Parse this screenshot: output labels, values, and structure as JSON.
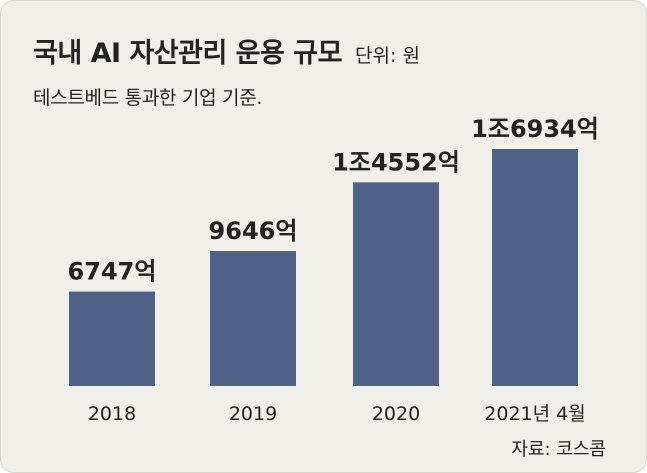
{
  "header": {
    "title": "국내 AI 자산관리 운용 규모",
    "unit": "단위: 원",
    "subtitle": "테스트베드 통과한 기업 기준."
  },
  "source": "자료: 코스콤",
  "colors": {
    "bar": "#4f6186",
    "background": "#f0efe9",
    "text": "#222222"
  },
  "chart_data": {
    "type": "bar",
    "categories": [
      "2018",
      "2019",
      "2020",
      "2021년 4월"
    ],
    "values": [
      6747,
      9646,
      14552,
      16934
    ],
    "value_labels": [
      "6747억",
      "9646억",
      "1조4552억",
      "1조6934억"
    ],
    "value_unit": "억 원",
    "grid": false,
    "legend": "none"
  }
}
